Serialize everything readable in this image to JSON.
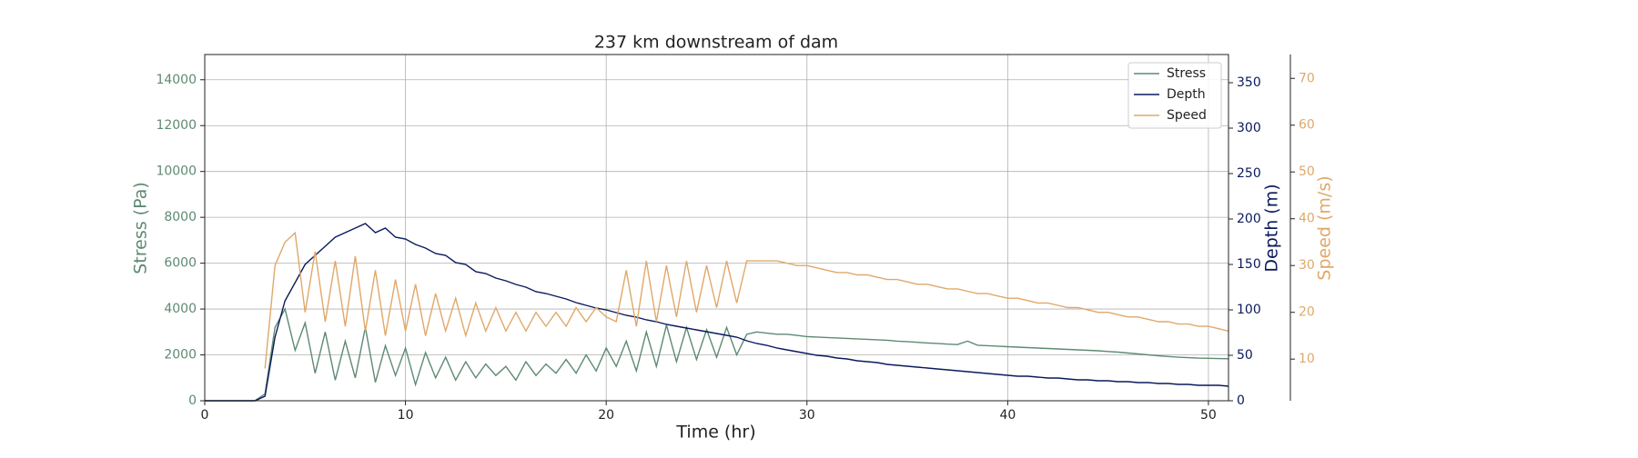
{
  "chart_data": {
    "type": "line",
    "title": "237 km downstream of dam",
    "xlabel": "Time (hr)",
    "ylabel": "Stress (Pa)",
    "y2label": "Depth (m)",
    "y3label": "Speed (m/s)",
    "x": [
      0,
      0.5,
      1,
      1.5,
      2,
      2.5,
      3,
      3.5,
      4,
      4.5,
      5,
      5.5,
      6,
      6.5,
      7,
      7.5,
      8,
      8.5,
      9,
      9.5,
      10,
      10.5,
      11,
      11.5,
      12,
      12.5,
      13,
      13.5,
      14,
      14.5,
      15,
      15.5,
      16,
      16.5,
      17,
      17.5,
      18,
      18.5,
      19,
      19.5,
      20,
      20.5,
      21,
      21.5,
      22,
      22.5,
      23,
      23.5,
      24,
      24.5,
      25,
      25.5,
      26,
      26.5,
      27,
      27.5,
      28,
      28.5,
      29,
      29.5,
      30,
      30.5,
      31,
      31.5,
      32,
      32.5,
      33,
      33.5,
      34,
      34.5,
      35,
      35.5,
      36,
      36.5,
      37,
      37.5,
      38,
      38.5,
      39,
      39.5,
      40,
      40.5,
      41,
      41.5,
      42,
      42.5,
      43,
      43.5,
      44,
      44.5,
      45,
      45.5,
      46,
      46.5,
      47,
      47.5,
      48,
      48.5,
      49,
      49.5,
      50,
      50.5,
      51
    ],
    "series": [
      {
        "name": "Stress",
        "color": "#5e8a72",
        "axis": "y",
        "values": [
          0,
          0,
          0,
          0,
          0,
          0,
          300,
          3200,
          4000,
          2200,
          3400,
          1200,
          3000,
          900,
          2600,
          1000,
          3200,
          800,
          2400,
          1100,
          2300,
          700,
          2100,
          1000,
          1900,
          900,
          1700,
          1000,
          1600,
          1100,
          1500,
          900,
          1700,
          1100,
          1600,
          1200,
          1800,
          1200,
          2000,
          1300,
          2300,
          1500,
          2600,
          1300,
          3000,
          1500,
          3300,
          1700,
          3200,
          1800,
          3100,
          1900,
          3200,
          2000,
          2900,
          3000,
          2950,
          2900,
          2900,
          2850,
          2800,
          2780,
          2760,
          2740,
          2720,
          2700,
          2680,
          2660,
          2640,
          2600,
          2580,
          2550,
          2520,
          2500,
          2470,
          2450,
          2600,
          2420,
          2400,
          2380,
          2360,
          2340,
          2320,
          2300,
          2280,
          2260,
          2240,
          2220,
          2200,
          2180,
          2150,
          2120,
          2080,
          2040,
          2000,
          1960,
          1930,
          1900,
          1880,
          1860,
          1850,
          1840,
          1830
        ]
      },
      {
        "name": "Depth",
        "color": "#0a1a5c",
        "axis": "y2",
        "values": [
          0,
          0,
          0,
          0,
          0,
          0,
          5,
          70,
          110,
          130,
          150,
          160,
          170,
          180,
          185,
          190,
          195,
          185,
          190,
          180,
          178,
          172,
          168,
          162,
          160,
          152,
          150,
          142,
          140,
          135,
          132,
          128,
          125,
          120,
          118,
          115,
          112,
          108,
          105,
          102,
          100,
          97,
          94,
          92,
          89,
          87,
          84,
          82,
          80,
          78,
          76,
          74,
          72,
          70,
          66,
          63,
          61,
          58,
          56,
          54,
          52,
          50,
          49,
          47,
          46,
          44,
          43,
          42,
          40,
          39,
          38,
          37,
          36,
          35,
          34,
          33,
          32,
          31,
          30,
          29,
          28,
          27,
          27,
          26,
          25,
          25,
          24,
          23,
          23,
          22,
          22,
          21,
          21,
          20,
          20,
          19,
          19,
          18,
          18,
          17,
          17,
          17,
          16
        ]
      },
      {
        "name": "Speed",
        "color": "#e0a86a",
        "axis": "y3",
        "values": [
          null,
          null,
          null,
          null,
          null,
          null,
          8,
          30,
          35,
          37,
          20,
          33,
          18,
          31,
          17,
          32,
          16,
          29,
          15,
          27,
          16,
          26,
          15,
          24,
          16,
          23,
          15,
          22,
          16,
          21,
          16,
          20,
          16,
          20,
          17,
          20,
          17,
          21,
          18,
          21,
          19,
          18,
          29,
          17,
          31,
          18,
          30,
          19,
          31,
          20,
          30,
          21,
          31,
          22,
          31,
          31,
          31,
          31,
          30.5,
          30,
          30,
          29.5,
          29,
          28.5,
          28.5,
          28,
          28,
          27.5,
          27,
          27,
          26.5,
          26,
          26,
          25.5,
          25,
          25,
          24.5,
          24,
          24,
          23.5,
          23,
          23,
          22.5,
          22,
          22,
          21.5,
          21,
          21,
          20.5,
          20,
          20,
          19.5,
          19,
          19,
          18.5,
          18,
          18,
          17.5,
          17.5,
          17,
          17,
          16.5,
          16
        ]
      }
    ],
    "xlim": [
      0,
      51
    ],
    "xticks": [
      0,
      10,
      20,
      30,
      40,
      50
    ],
    "ylim": [
      0,
      15100
    ],
    "yticks": [
      0,
      2000,
      4000,
      6000,
      8000,
      10000,
      12000,
      14000
    ],
    "y2lim": [
      0,
      381
    ],
    "y2ticks": [
      0,
      50,
      100,
      150,
      200,
      250,
      300,
      350
    ],
    "y3lim": [
      1.1,
      75.1
    ],
    "y3ticks": [
      10,
      20,
      30,
      40,
      50,
      60,
      70
    ],
    "grid": true,
    "legend": "upper right"
  }
}
